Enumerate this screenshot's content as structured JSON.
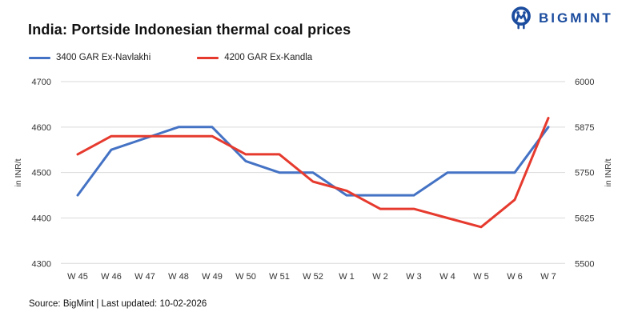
{
  "brand": {
    "name": "BIGMINT"
  },
  "title": "India: Portside Indonesian thermal coal prices",
  "source_note": "Source: BigMint | Last updated: 10-02-2026",
  "colors": {
    "brand_blue": "#1b4c9e",
    "series_blue": "#4472c4",
    "series_red": "#e63a2e",
    "grid": "#d9d9d9",
    "axis_text": "#333333"
  },
  "chart_data": {
    "type": "line",
    "categories": [
      "W 45",
      "W 46",
      "W 47",
      "W 48",
      "W 49",
      "W 50",
      "W 51",
      "W 52",
      "W 1",
      "W 2",
      "W 3",
      "W 4",
      "W 5",
      "W 6",
      "W 7"
    ],
    "series": [
      {
        "name": "3400 GAR Ex-Navlakhi",
        "axis": "left",
        "color": "#4472c4",
        "values": [
          4450,
          4550,
          4575,
          4600,
          4600,
          4525,
          4500,
          4500,
          4450,
          4450,
          4450,
          4500,
          4500,
          4500,
          4600
        ]
      },
      {
        "name": "4200 GAR Ex-Kandla",
        "axis": "right",
        "color": "#e63a2e",
        "values": [
          5800,
          5850,
          5850,
          5850,
          5850,
          5800,
          5800,
          5725,
          5700,
          5650,
          5650,
          5625,
          5600,
          5675,
          5900
        ]
      }
    ],
    "left_axis": {
      "label": "in INR/t",
      "min": 4300,
      "max": 4700,
      "ticks": [
        4300,
        4400,
        4500,
        4600,
        4700
      ]
    },
    "right_axis": {
      "label": "in INR/t",
      "min": 5500,
      "max": 6000,
      "ticks": [
        5500,
        5625,
        5750,
        5875,
        6000
      ]
    },
    "grid": true,
    "legend_position": "top-left"
  }
}
